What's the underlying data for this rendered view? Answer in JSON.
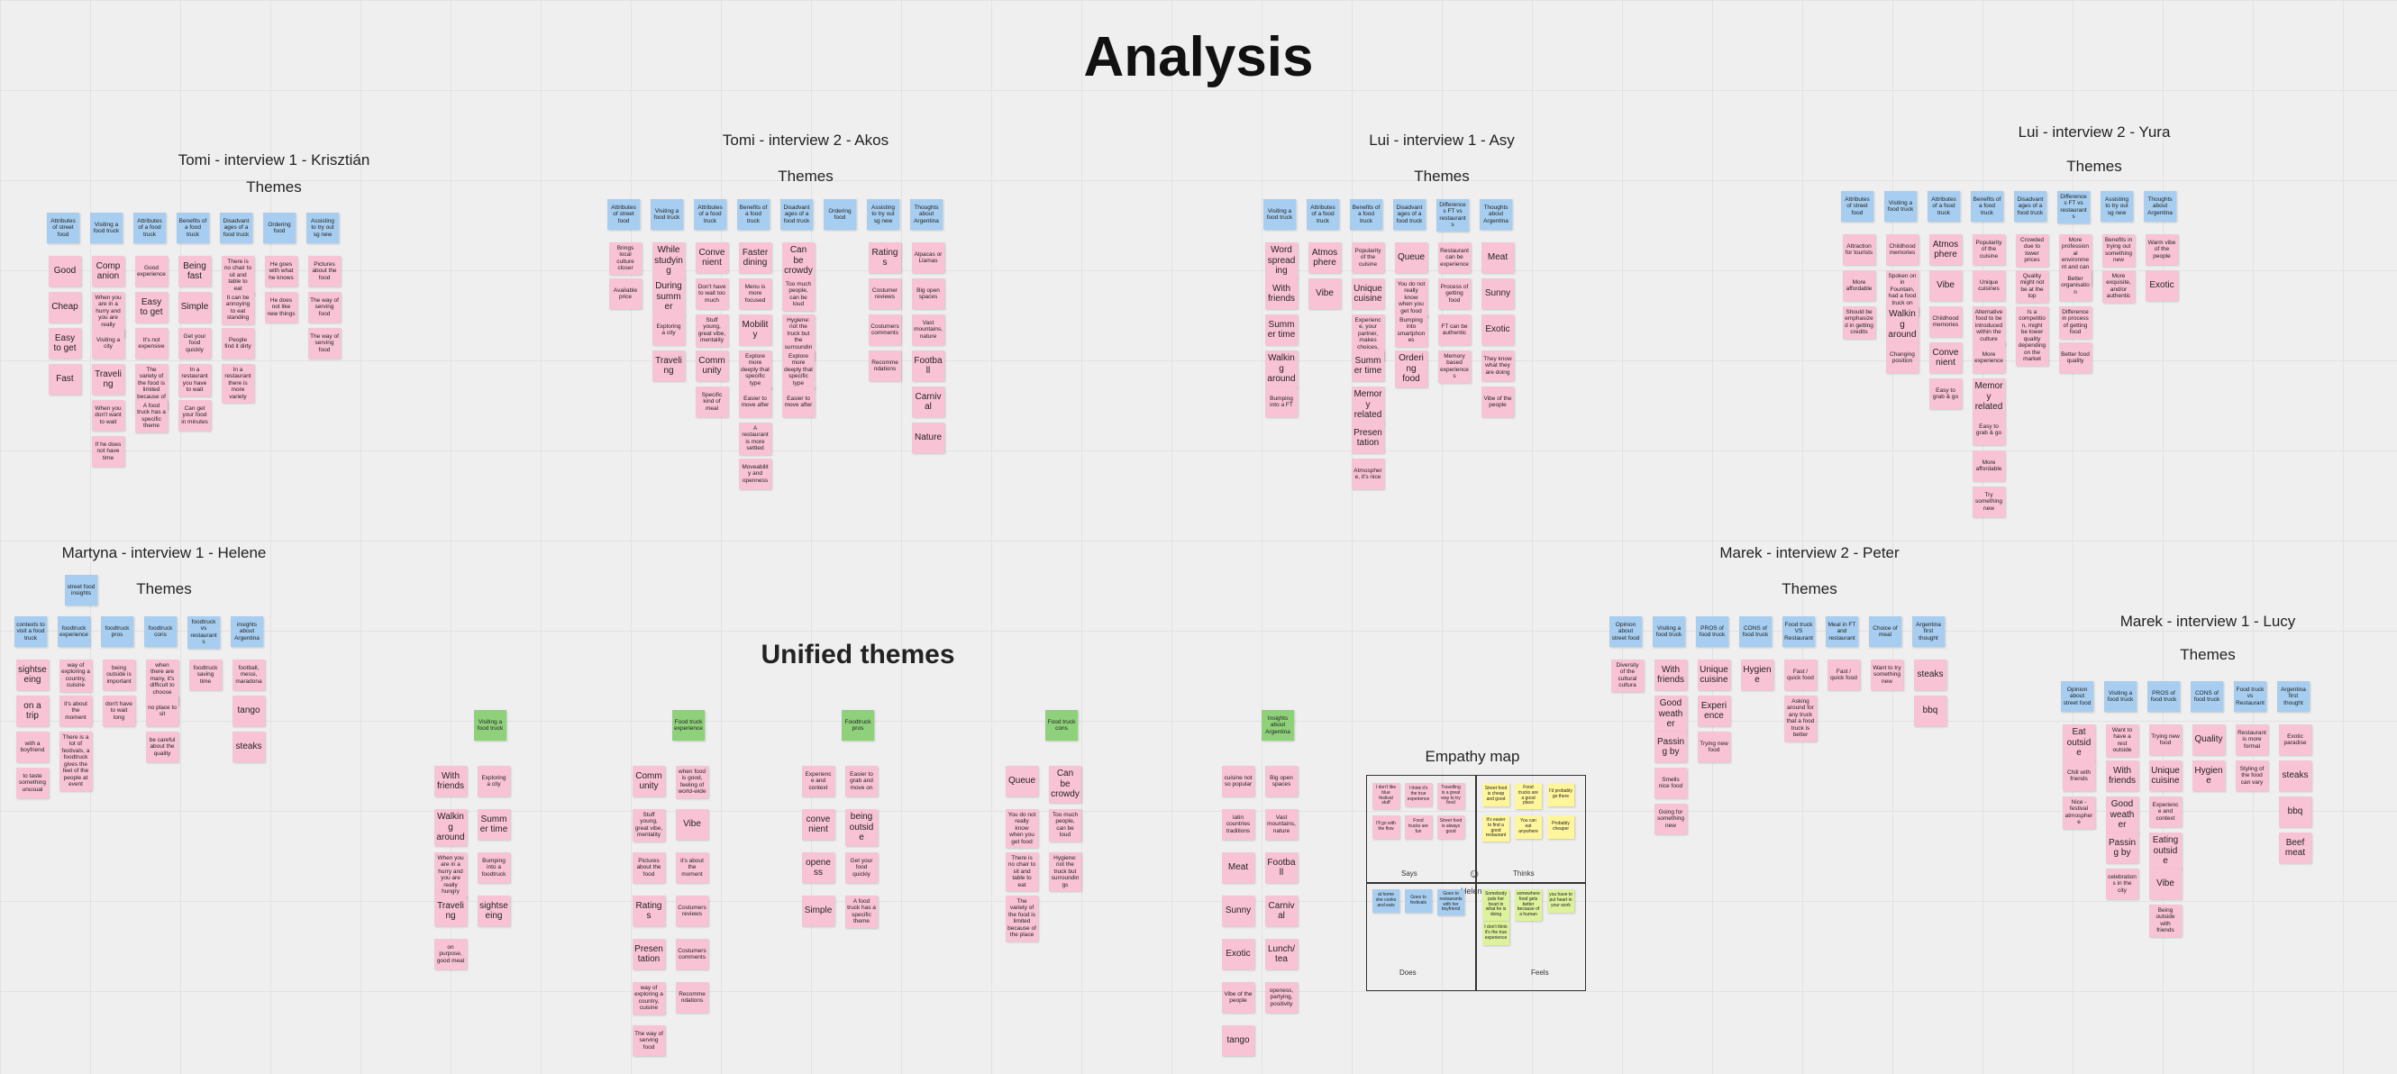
{
  "title": "Analysis",
  "unified_title": "Unified themes",
  "empathy_map": {
    "title": "Empathy map",
    "labels": {
      "says": "Says",
      "thinks": "Thinks",
      "does": "Does",
      "feels": "Feels",
      "person": "Helene"
    },
    "says": [
      "I don't like blue festival stuff",
      "I think it's the true experience",
      "Travelling is a great way to try food",
      "I'll go with the flow",
      "Food trucks are fun",
      "Street food is always good"
    ],
    "thinks": [
      "Street food is cheap and good",
      "Food trucks are a good place",
      "I'd probably go there",
      "It's easier to find a good restaurant",
      "You can eat anywhere",
      "Probably cheaper"
    ],
    "does": [
      "at home she cooks and eats",
      "Goes to festivals",
      "Goes to restaurants with her boyfriend"
    ],
    "feels": [
      "Somebody puts her heart in what he is doing",
      "somewhere food gets better because of a human",
      "you have to put heart in your work",
      "I don't think it's the true experience"
    ]
  },
  "groups": [
    {
      "id": "g1",
      "title": "Tomi - interview 1 - Krisztián",
      "subtitle": "Themes",
      "cols": [
        {
          "header": "Attributes of street food",
          "notes": [
            "Good",
            "Cheap",
            "Easy to get",
            "Fast"
          ]
        },
        {
          "header": "Visiting a food truck",
          "notes": [
            "Companion",
            "When you are in a hurry and you are really hungry",
            "Visiting a city",
            "Traveling",
            "When you don't want to wait",
            "If he does not have time"
          ]
        },
        {
          "header": "Attributes of a food truck",
          "notes": [
            "Good experience",
            "Easy to get",
            "It's not expensive",
            "The variety of the food is limited because of the place",
            "A food truck has a specific theme"
          ]
        },
        {
          "header": "Benefits of a food truck",
          "notes": [
            "Being fast",
            "Simple",
            "Get your food quickly",
            "In a restaurant you have to wait",
            "Can get your food in minutes"
          ]
        },
        {
          "header": "Disadvantages of a food truck",
          "notes": [
            "There is no chair to sit and table to eat",
            "It can be annoying to eat standing",
            "People find it dirty",
            "In a restaurant there is more variety"
          ]
        },
        {
          "header": "Ordering food",
          "notes": [
            "He goes with what he knows",
            "He does not like new things"
          ]
        },
        {
          "header": "Assisting to try out sg new",
          "notes": [
            "Pictures about the food",
            "The way of serving food",
            "The way of serving food"
          ]
        }
      ]
    },
    {
      "id": "g2",
      "title": "Tomi - interview 2 - Akos",
      "subtitle": "Themes",
      "cols": [
        {
          "header": "Attributes of street food",
          "notes": [
            "Brings local culture closer",
            "Available price"
          ]
        },
        {
          "header": "Visiting a food truck",
          "notes": [
            "While studying",
            "During summer",
            "Exploring a city",
            "Traveling"
          ]
        },
        {
          "header": "Attributes of a food truck",
          "notes": [
            "Convenient",
            "Don't have to wait too much",
            "Stuff young, great vibe, mentality",
            "Community",
            "Specific kind of meal"
          ]
        },
        {
          "header": "Benefits of a food truck",
          "notes": [
            "Faster dining",
            "Menu is more focused",
            "Mobility",
            "Explore more deeply that specific type",
            "Easier to move after",
            "A restaurant is more settled",
            "Moveability and openness"
          ]
        },
        {
          "header": "Disadvantages of a food truck",
          "notes": [
            "Can be crowdy",
            "Too much people, can be loud",
            "Hygiene: not the truck but the surroundings",
            "Explore more deeply that specific type",
            "Easier to move after"
          ]
        },
        {
          "header": "Ordering food",
          "notes": []
        },
        {
          "header": "Assisting to try out sg new",
          "notes": [
            "Ratings",
            "Costumer reviews",
            "Costumers comments",
            "Recommendations"
          ]
        },
        {
          "header": "Thoughts about Argentina",
          "notes": [
            "Alpacas or Llamas",
            "Big open spaces",
            "Vast mountains, nature",
            "Football",
            "Carnival",
            "Nature"
          ]
        }
      ]
    },
    {
      "id": "g3",
      "title": "Lui - interview 1 - Asy",
      "subtitle": "Themes",
      "cols": [
        {
          "header": "Visiting a food truck",
          "notes": [
            "Word spreading",
            "With friends",
            "Summer time",
            "Walking around",
            "Bumping into a FT"
          ]
        },
        {
          "header": "Attributes of a food truck",
          "notes": [
            "Atmosphere",
            "Vibe"
          ]
        },
        {
          "header": "Benefits of a food truck",
          "notes": [
            "Popularity of the cuisine",
            "Unique cuisine",
            "Experience, your partner, makes choices, exciting",
            "Summer time",
            "Memory related",
            "Presentation",
            "Atmosphere, it's nice"
          ]
        },
        {
          "header": "Disadvantages of a food truck",
          "notes": [
            "Queue",
            "You do not really know when you get food",
            "Bumping into smartphones",
            "Ordering food"
          ]
        },
        {
          "header": "Differences FT vs restaurants",
          "notes": [
            "Restaurant can be experience",
            "Process of getting food",
            "FT can be authentic",
            "Memory based experiences"
          ]
        },
        {
          "header": "Thoughts about Argentina",
          "notes": [
            "Meat",
            "Sunny",
            "Exotic",
            "They know what they are doing",
            "Vibe of the people"
          ]
        }
      ]
    },
    {
      "id": "g4",
      "title": "Lui - interview 2 - Yura",
      "subtitle": "Themes",
      "cols": [
        {
          "header": "Attributes of street food",
          "notes": [
            "Attraction for tourists",
            "More affordable",
            "Should be emphasized in getting credits"
          ]
        },
        {
          "header": "Visiting a food truck",
          "notes": [
            "Childhood memories",
            "Spoken on in Fountain, had a food truck on the way",
            "Walking around",
            "Changing position"
          ]
        },
        {
          "header": "Attributes of a food truck",
          "notes": [
            "Atmosphere",
            "Vibe",
            "Childhood memories",
            "Convenient",
            "Easy to grab & go"
          ]
        },
        {
          "header": "Benefits of a food truck",
          "notes": [
            "Popularity of the cuisine",
            "Unique cuisines",
            "Alternative food to be introduced within the culture",
            "More experience",
            "Memory related",
            "Easy to grab & go",
            "More affordable",
            "Try something new"
          ]
        },
        {
          "header": "Disadvantages of a food truck",
          "notes": [
            "Crowded due to lower prices",
            "Quality might not be at the top",
            "Is a competition, might be lower quality depending on the market"
          ]
        },
        {
          "header": "Differences FT vs restaurants",
          "notes": [
            "More professional environment and can be a restaurant",
            "Better organisation",
            "Difference in process of getting food",
            "Better food quality"
          ]
        },
        {
          "header": "Assisting to try out sg new",
          "notes": [
            "Benefits in trying out something new",
            "More exquisite, and/or authentic"
          ]
        },
        {
          "header": "Thoughts about Argentina",
          "notes": [
            "Warm vibe of the people",
            "Exotic"
          ]
        }
      ]
    },
    {
      "id": "g5",
      "title": "Martyna - interview 1 - Helene",
      "subtitle": "Themes",
      "cols": [
        {
          "header": "contexts to visit a food truck",
          "notes": [
            "sightseeing",
            "on a trip",
            "with a boyfriend",
            "to taste something unusual"
          ]
        },
        {
          "header": "foodtruck experience",
          "notes": [
            "way of exploring a country, cuisine",
            "it's about the moment",
            "There is a lot of festivals, a foodtruck gives the feel of the people at event"
          ]
        },
        {
          "header": "foodtruck pros",
          "notes": [
            "being outside is important",
            "don't have to wait long"
          ]
        },
        {
          "header": "foodtruck cons",
          "notes": [
            "when there are many, it's difficult to choose from",
            "no place to sit",
            "be careful about the quality"
          ]
        },
        {
          "header": "foodtruck vs restaurants",
          "notes": [
            "foodtruck saving time"
          ]
        },
        {
          "header": "insights about Argentina",
          "notes": [
            "football, messi, maradona",
            "tango",
            "steaks"
          ]
        }
      ],
      "extra": "street food insights"
    },
    {
      "id": "g6",
      "title": "Marek - interview 2 - Peter",
      "subtitle": "Themes",
      "cols": [
        {
          "header": "Opinion about street food",
          "notes": [
            "Diversity of the cultural cultura"
          ]
        },
        {
          "header": "Visiting a food truck",
          "notes": [
            "With friends",
            "Good weather",
            "Passing by",
            "Smells nice food",
            "Going for something new"
          ]
        },
        {
          "header": "PROS of food truck",
          "notes": [
            "Unique cuisine",
            "Experience",
            "Trying new food"
          ]
        },
        {
          "header": "CONS of food truck",
          "notes": [
            "Hygiene"
          ]
        },
        {
          "header": "Food truck VS Restaurant",
          "notes": [
            "Fast / quick food",
            "Asking around for any truck that a food truck is better"
          ]
        },
        {
          "header": "Meal in FT and restaurant",
          "notes": [
            "Fast / quick food"
          ]
        },
        {
          "header": "Choice of meal",
          "notes": [
            "Want to try something new"
          ]
        },
        {
          "header": "Argentina first thought",
          "notes": [
            "steaks",
            "bbq"
          ]
        }
      ]
    },
    {
      "id": "g7",
      "title": "Marek - interview 1 - Lucy",
      "subtitle": "Themes",
      "cols": [
        {
          "header": "Opinion about street food",
          "notes": [
            "Eat outside",
            "Chill with friends",
            "Nice - festival atmosphere"
          ]
        },
        {
          "header": "Visiting a food truck",
          "notes": [
            "Want to have a rest outside",
            "With friends",
            "Good weather",
            "Passing by",
            "celebrations in the city"
          ]
        },
        {
          "header": "PROS of food truck",
          "notes": [
            "Trying new food",
            "Unique cuisine",
            "Experience and context",
            "Eating outside",
            "Vibe",
            "Being outside with friends"
          ]
        },
        {
          "header": "CONS of food truck",
          "notes": [
            "Quality",
            "Hygiene"
          ]
        },
        {
          "header": "Food truck vs Restaurant",
          "notes": [
            "Restaurant is more formal",
            "Styling of the food can vary"
          ]
        },
        {
          "header": "Argentina first thought",
          "notes": [
            "Exotic paradise",
            "steaks",
            "bbq",
            "Beef meat"
          ]
        }
      ]
    }
  ],
  "unified": [
    {
      "header": "Visiting a food truck",
      "notes": [
        "With friends",
        "Exploring a city",
        "Walking around",
        "Summer time",
        "When you are in a hurry and you are really hungry",
        "Bumping into a foodtruck",
        "Traveling",
        "sightseeing",
        "on purpose, good meal"
      ]
    },
    {
      "header": "Food truck experience",
      "notes": [
        "Community",
        "when food is good, feeling of world-wide",
        "Stuff young, great vibe, mentality",
        "Vibe",
        "Pictures about the food",
        "it's about the moment",
        "Ratings",
        "Costumers reviews",
        "Presentation",
        "Costumers comments",
        "way of exploring a country, cuisine",
        "Recommendations",
        "The way of serving food"
      ]
    },
    {
      "header": "Foodtruck pros",
      "notes": [
        "Experience and context",
        "Easier to grab and move on",
        "convenient",
        "being outside",
        "openess",
        "Get your food quickly",
        "Simple",
        "A food truck has a specific theme"
      ]
    },
    {
      "header": "Food truck cons",
      "notes": [
        "Queue",
        "Can be crowdy",
        "You do not really know when you get food",
        "Too much people, can be loud",
        "There is no chair to sit and table to eat",
        "Hygiene: not the truck but surroundings",
        "The variety of the food is limited because of the place"
      ]
    },
    {
      "header": "Insights about Argentina",
      "notes": [
        "cuisine not so popular",
        "Big open spaces",
        "latin countries traditions",
        "Vast mountains, nature",
        "Meat",
        "Football",
        "Sunny",
        "Carnival",
        "Exotic",
        "Lunch/tea",
        "Vibe of the people",
        "openess, partying, positivity",
        "tango"
      ]
    }
  ]
}
